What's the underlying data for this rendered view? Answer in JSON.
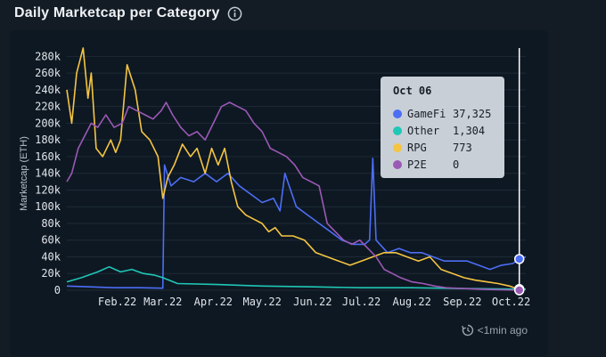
{
  "header": {
    "title": "Daily Marketcap per Category"
  },
  "footer": {
    "updated": "<1min ago"
  },
  "tooltip": {
    "date": "Oct 06",
    "rows": [
      {
        "name": "GameFi",
        "value": "37,325",
        "color": "#4c6ef5"
      },
      {
        "name": "Other",
        "value": "1,304",
        "color": "#1fc7b6"
      },
      {
        "name": "RPG",
        "value": "773",
        "color": "#f5c542"
      },
      {
        "name": "P2E",
        "value": "0",
        "color": "#9b59b6"
      }
    ]
  },
  "chart_data": {
    "type": "line",
    "ylabel": "Marketcap (ETH)",
    "ylim": [
      0,
      290000
    ],
    "y_ticks": [
      "0",
      "20k",
      "40k",
      "60k",
      "80k",
      "100k",
      "120k",
      "140k",
      "160k",
      "180k",
      "200k",
      "220k",
      "240k",
      "260k",
      "280k"
    ],
    "x_range": [
      "2022-01-01",
      "2022-10-10"
    ],
    "x_ticks": [
      {
        "label": "Feb.22",
        "date": "2022-02-01"
      },
      {
        "label": "Mar.22",
        "date": "2022-03-01"
      },
      {
        "label": "Apr.22",
        "date": "2022-04-01"
      },
      {
        "label": "May.22",
        "date": "2022-05-01"
      },
      {
        "label": "Jun.22",
        "date": "2022-06-01"
      },
      {
        "label": "Jul.22",
        "date": "2022-07-01"
      },
      {
        "label": "Aug.22",
        "date": "2022-08-01"
      },
      {
        "label": "Sep.22",
        "date": "2022-09-01"
      },
      {
        "label": "Oct.22",
        "date": "2022-10-01"
      }
    ],
    "crosshair_date": "2022-10-06",
    "grid": true,
    "series": [
      {
        "name": "GameFi",
        "color": "#4c6ef5",
        "points": [
          [
            "2022-01-01",
            5000
          ],
          [
            "2022-01-15",
            4000
          ],
          [
            "2022-01-31",
            3000
          ],
          [
            "2022-02-15",
            3000
          ],
          [
            "2022-03-01",
            2500
          ],
          [
            "2022-03-02",
            150000
          ],
          [
            "2022-03-06",
            125000
          ],
          [
            "2022-03-12",
            135000
          ],
          [
            "2022-03-20",
            130000
          ],
          [
            "2022-03-27",
            140000
          ],
          [
            "2022-04-03",
            130000
          ],
          [
            "2022-04-10",
            140000
          ],
          [
            "2022-04-17",
            125000
          ],
          [
            "2022-04-24",
            115000
          ],
          [
            "2022-05-01",
            105000
          ],
          [
            "2022-05-08",
            110000
          ],
          [
            "2022-05-12",
            95000
          ],
          [
            "2022-05-15",
            140000
          ],
          [
            "2022-05-22",
            100000
          ],
          [
            "2022-05-29",
            90000
          ],
          [
            "2022-06-05",
            80000
          ],
          [
            "2022-06-12",
            70000
          ],
          [
            "2022-06-19",
            60000
          ],
          [
            "2022-06-26",
            55000
          ],
          [
            "2022-07-03",
            55000
          ],
          [
            "2022-07-06",
            60000
          ],
          [
            "2022-07-08",
            158000
          ],
          [
            "2022-07-10",
            60000
          ],
          [
            "2022-07-17",
            45000
          ],
          [
            "2022-07-24",
            50000
          ],
          [
            "2022-07-31",
            45000
          ],
          [
            "2022-08-07",
            45000
          ],
          [
            "2022-08-14",
            40000
          ],
          [
            "2022-08-21",
            35000
          ],
          [
            "2022-08-28",
            35000
          ],
          [
            "2022-09-04",
            35000
          ],
          [
            "2022-09-11",
            30000
          ],
          [
            "2022-09-18",
            25000
          ],
          [
            "2022-09-25",
            30000
          ],
          [
            "2022-10-02",
            32000
          ],
          [
            "2022-10-06",
            37325
          ],
          [
            "2022-10-10",
            40000
          ]
        ]
      },
      {
        "name": "Other",
        "color": "#1fc7b6",
        "points": [
          [
            "2022-01-01",
            10000
          ],
          [
            "2022-01-10",
            15000
          ],
          [
            "2022-01-20",
            22000
          ],
          [
            "2022-01-27",
            28000
          ],
          [
            "2022-02-03",
            22000
          ],
          [
            "2022-02-10",
            25000
          ],
          [
            "2022-02-17",
            20000
          ],
          [
            "2022-02-24",
            18000
          ],
          [
            "2022-03-01",
            15000
          ],
          [
            "2022-03-10",
            8000
          ],
          [
            "2022-04-01",
            7000
          ],
          [
            "2022-05-01",
            5000
          ],
          [
            "2022-06-01",
            4000
          ],
          [
            "2022-07-01",
            3000
          ],
          [
            "2022-08-01",
            3000
          ],
          [
            "2022-09-01",
            2000
          ],
          [
            "2022-10-06",
            1304
          ],
          [
            "2022-10-10",
            1300
          ]
        ]
      },
      {
        "name": "RPG",
        "color": "#f5c542",
        "points": [
          [
            "2022-01-01",
            240000
          ],
          [
            "2022-01-04",
            200000
          ],
          [
            "2022-01-07",
            260000
          ],
          [
            "2022-01-11",
            290000
          ],
          [
            "2022-01-14",
            230000
          ],
          [
            "2022-01-16",
            260000
          ],
          [
            "2022-01-19",
            170000
          ],
          [
            "2022-01-23",
            160000
          ],
          [
            "2022-01-28",
            180000
          ],
          [
            "2022-01-31",
            165000
          ],
          [
            "2022-02-03",
            180000
          ],
          [
            "2022-02-07",
            270000
          ],
          [
            "2022-02-12",
            240000
          ],
          [
            "2022-02-16",
            190000
          ],
          [
            "2022-02-21",
            180000
          ],
          [
            "2022-02-26",
            160000
          ],
          [
            "2022-03-01",
            110000
          ],
          [
            "2022-03-04",
            135000
          ],
          [
            "2022-03-08",
            150000
          ],
          [
            "2022-03-13",
            175000
          ],
          [
            "2022-03-18",
            160000
          ],
          [
            "2022-03-22",
            170000
          ],
          [
            "2022-03-27",
            140000
          ],
          [
            "2022-03-31",
            170000
          ],
          [
            "2022-04-04",
            150000
          ],
          [
            "2022-04-08",
            170000
          ],
          [
            "2022-04-12",
            130000
          ],
          [
            "2022-04-16",
            100000
          ],
          [
            "2022-04-21",
            90000
          ],
          [
            "2022-04-26",
            85000
          ],
          [
            "2022-05-01",
            80000
          ],
          [
            "2022-05-05",
            70000
          ],
          [
            "2022-05-09",
            75000
          ],
          [
            "2022-05-13",
            65000
          ],
          [
            "2022-05-20",
            65000
          ],
          [
            "2022-05-27",
            60000
          ],
          [
            "2022-06-03",
            45000
          ],
          [
            "2022-06-10",
            40000
          ],
          [
            "2022-06-17",
            35000
          ],
          [
            "2022-06-24",
            30000
          ],
          [
            "2022-07-01",
            35000
          ],
          [
            "2022-07-08",
            40000
          ],
          [
            "2022-07-15",
            45000
          ],
          [
            "2022-07-22",
            45000
          ],
          [
            "2022-07-29",
            40000
          ],
          [
            "2022-08-05",
            35000
          ],
          [
            "2022-08-12",
            40000
          ],
          [
            "2022-08-19",
            25000
          ],
          [
            "2022-08-26",
            20000
          ],
          [
            "2022-09-02",
            15000
          ],
          [
            "2022-09-09",
            12000
          ],
          [
            "2022-09-16",
            10000
          ],
          [
            "2022-09-23",
            8000
          ],
          [
            "2022-09-30",
            5000
          ],
          [
            "2022-10-06",
            773
          ]
        ]
      },
      {
        "name": "P2E",
        "color": "#9b59b6",
        "points": [
          [
            "2022-01-01",
            130000
          ],
          [
            "2022-01-04",
            140000
          ],
          [
            "2022-01-08",
            170000
          ],
          [
            "2022-01-12",
            185000
          ],
          [
            "2022-01-16",
            200000
          ],
          [
            "2022-01-20",
            195000
          ],
          [
            "2022-01-25",
            210000
          ],
          [
            "2022-01-30",
            195000
          ],
          [
            "2022-02-04",
            200000
          ],
          [
            "2022-02-08",
            220000
          ],
          [
            "2022-02-13",
            215000
          ],
          [
            "2022-02-18",
            210000
          ],
          [
            "2022-02-23",
            205000
          ],
          [
            "2022-02-28",
            215000
          ],
          [
            "2022-03-03",
            225000
          ],
          [
            "2022-03-07",
            210000
          ],
          [
            "2022-03-12",
            195000
          ],
          [
            "2022-03-17",
            185000
          ],
          [
            "2022-03-22",
            190000
          ],
          [
            "2022-03-27",
            180000
          ],
          [
            "2022-04-01",
            200000
          ],
          [
            "2022-04-06",
            220000
          ],
          [
            "2022-04-11",
            225000
          ],
          [
            "2022-04-16",
            220000
          ],
          [
            "2022-04-21",
            215000
          ],
          [
            "2022-04-26",
            200000
          ],
          [
            "2022-05-01",
            190000
          ],
          [
            "2022-05-06",
            170000
          ],
          [
            "2022-05-11",
            165000
          ],
          [
            "2022-05-16",
            160000
          ],
          [
            "2022-05-21",
            150000
          ],
          [
            "2022-05-26",
            135000
          ],
          [
            "2022-05-31",
            130000
          ],
          [
            "2022-06-05",
            125000
          ],
          [
            "2022-06-10",
            80000
          ],
          [
            "2022-06-15",
            70000
          ],
          [
            "2022-06-20",
            60000
          ],
          [
            "2022-06-25",
            55000
          ],
          [
            "2022-06-30",
            60000
          ],
          [
            "2022-07-05",
            50000
          ],
          [
            "2022-07-10",
            40000
          ],
          [
            "2022-07-15",
            25000
          ],
          [
            "2022-07-20",
            20000
          ],
          [
            "2022-07-25",
            15000
          ],
          [
            "2022-08-01",
            10000
          ],
          [
            "2022-08-08",
            8000
          ],
          [
            "2022-08-15",
            5000
          ],
          [
            "2022-08-22",
            3000
          ],
          [
            "2022-09-01",
            2000
          ],
          [
            "2022-09-15",
            1000
          ],
          [
            "2022-10-06",
            0
          ]
        ]
      }
    ]
  }
}
